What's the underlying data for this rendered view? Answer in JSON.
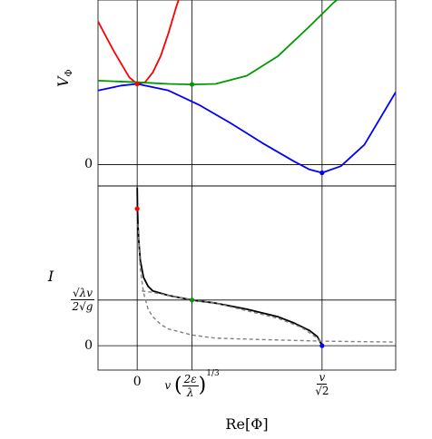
{
  "chart_data": [
    {
      "type": "line",
      "panel": "top",
      "ylabel": "V_Φ",
      "ylabel_display": "V",
      "ylabel_sub": "Φ",
      "y_ticks": [
        {
          "value": 0,
          "label": "0"
        }
      ],
      "x_ticks": [
        0,
        0.35,
        1.18
      ],
      "xlim": [
        -0.25,
        1.65
      ],
      "ylim": [
        -0.13,
        1.0
      ],
      "grid": false,
      "series": [
        {
          "color": "#ff0000",
          "x": [
            -0.25,
            -0.2,
            -0.15,
            -0.1,
            -0.05,
            0,
            0.05,
            0.1,
            0.15,
            0.2,
            0.25,
            0.3
          ],
          "y": [
            0.87,
            0.78,
            0.69,
            0.61,
            0.53,
            0.49,
            0.5,
            0.56,
            0.66,
            0.8,
            0.96,
            1.1
          ]
        },
        {
          "color": "#009900",
          "x": [
            -0.25,
            0,
            0.2,
            0.35,
            0.5,
            0.7,
            0.9,
            1.1,
            1.25,
            1.4
          ],
          "y": [
            0.51,
            0.5,
            0.49,
            0.487,
            0.49,
            0.54,
            0.66,
            0.84,
            0.98,
            1.1
          ]
        },
        {
          "color": "#0000ff",
          "x": [
            -0.25,
            -0.1,
            0,
            0.2,
            0.4,
            0.6,
            0.8,
            1.0,
            1.1,
            1.18,
            1.3,
            1.45,
            1.65
          ],
          "y": [
            0.45,
            0.48,
            0.49,
            0.45,
            0.36,
            0.25,
            0.13,
            0.02,
            -0.03,
            -0.05,
            -0.01,
            0.12,
            0.44
          ]
        }
      ],
      "points": [
        {
          "x": 0,
          "y": 0.49,
          "color": "#ff0000"
        },
        {
          "x": 0.35,
          "y": 0.487,
          "color": "#009900"
        },
        {
          "x": 1.18,
          "y": -0.05,
          "color": "#0000ff"
        }
      ]
    },
    {
      "type": "line",
      "panel": "bottom",
      "ylabel": "I",
      "xlabel": "Re[Φ]",
      "xlabel_parts": {
        "re": "Re",
        "open": "[",
        "phi": "Φ",
        "close": "]"
      },
      "y_ticks": [
        {
          "value": 0,
          "label": "0"
        },
        {
          "value": 0.3,
          "label": "√λv / 2√g",
          "num": "√λv",
          "den": "2√g"
        }
      ],
      "x_ticks": [
        {
          "value": 0,
          "label": "0"
        },
        {
          "value": 0.35,
          "label": "v (2ε/λ)^(1/3)",
          "v": "v",
          "num": "2ε",
          "den": "λ",
          "exp": "1/3"
        },
        {
          "value": 1.18,
          "label": "v / √2",
          "num": "v",
          "den": "√2"
        }
      ],
      "xlim": [
        -0.25,
        1.65
      ],
      "ylim": [
        -0.16,
        1.05
      ],
      "grid": false,
      "series": [
        {
          "style": "solid",
          "color": "#000000",
          "x": [
            0,
            0.002,
            0.005,
            0.01,
            0.02,
            0.04,
            0.07,
            0.1,
            0.2,
            0.35,
            0.5,
            0.7,
            0.9,
            1.0,
            1.1,
            1.15,
            1.18
          ],
          "y": [
            1.04,
            0.9,
            0.8,
            0.69,
            0.56,
            0.45,
            0.39,
            0.36,
            0.33,
            0.3,
            0.28,
            0.24,
            0.19,
            0.15,
            0.1,
            0.06,
            0
          ]
        },
        {
          "style": "dashed",
          "color": "#808080",
          "x": [
            0.005,
            0.02,
            0.04,
            0.07,
            0.1,
            0.15,
            0.2,
            0.35,
            0.5,
            0.8,
            1.18,
            1.4,
            1.65
          ],
          "y": [
            0.8,
            0.5,
            0.35,
            0.24,
            0.19,
            0.14,
            0.11,
            0.07,
            0.05,
            0.04,
            0.03,
            0.027,
            0.024
          ]
        },
        {
          "style": "dashed",
          "color": "#808080",
          "x": [
            0.03,
            0.1,
            0.2,
            0.35,
            0.5,
            0.7,
            0.9,
            1.05,
            1.15,
            1.18
          ],
          "y": [
            0.36,
            0.35,
            0.33,
            0.3,
            0.28,
            0.23,
            0.18,
            0.12,
            0.05,
            0
          ]
        }
      ],
      "points": [
        {
          "x": 0,
          "y": 0.9,
          "color": "#ff0000"
        },
        {
          "x": 0.35,
          "y": 0.3,
          "color": "#009900"
        },
        {
          "x": 1.18,
          "y": 0,
          "color": "#0000ff"
        }
      ]
    }
  ]
}
